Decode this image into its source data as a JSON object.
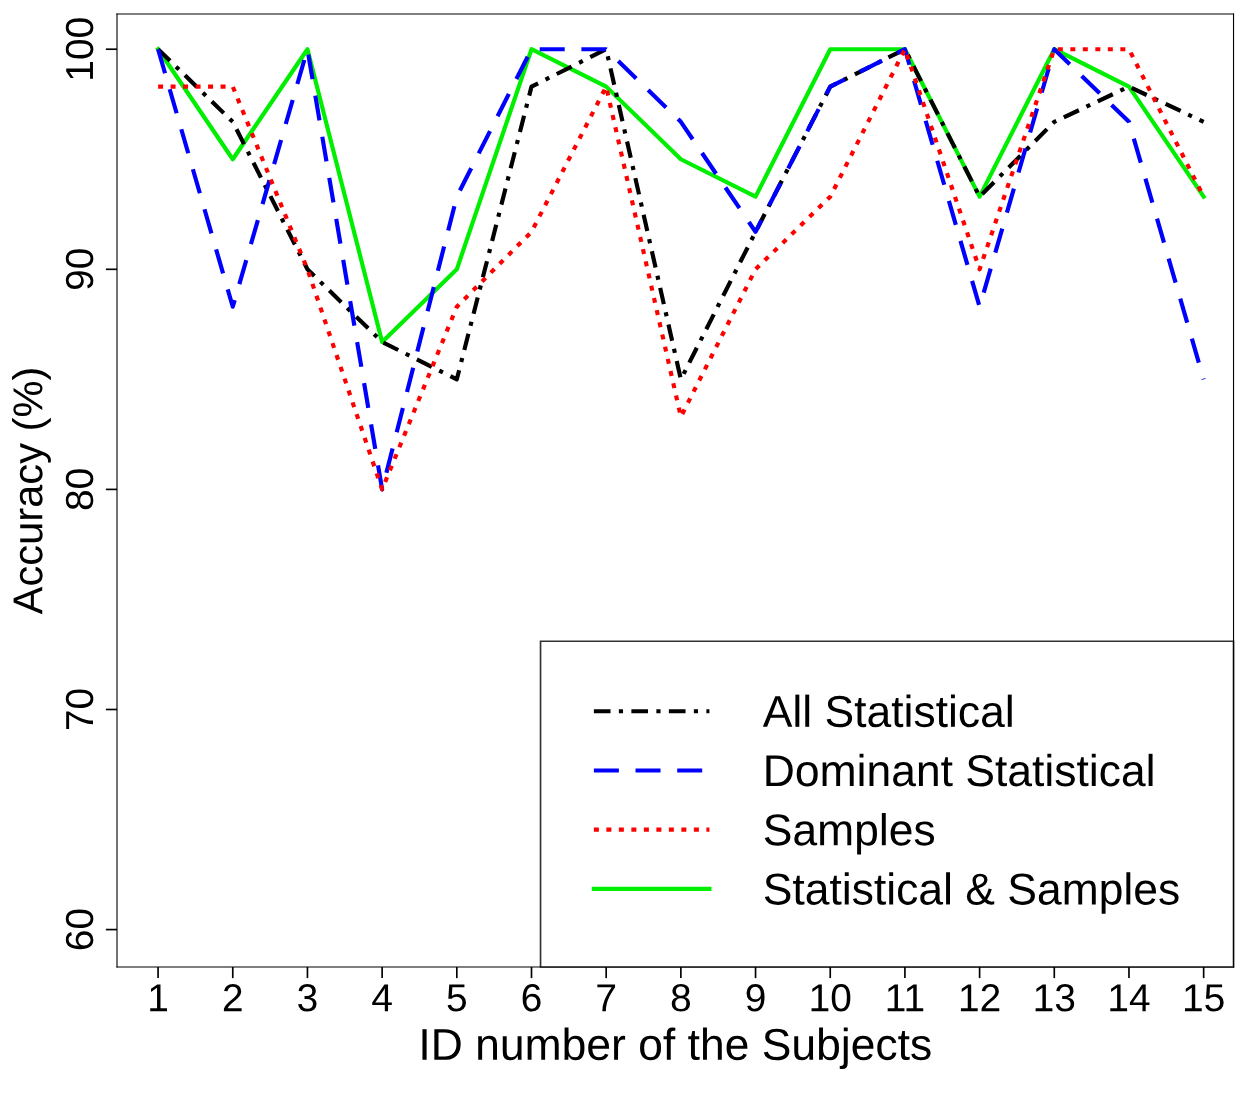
{
  "chart_data": {
    "type": "line",
    "xlabel": "ID number of the Subjects",
    "ylabel": "Accuracy (%)",
    "x": [
      1,
      2,
      3,
      4,
      5,
      6,
      7,
      8,
      9,
      10,
      11,
      12,
      13,
      14,
      15
    ],
    "xlim": [
      0.45,
      15.4
    ],
    "xticks": [
      1,
      2,
      3,
      4,
      5,
      6,
      7,
      8,
      9,
      10,
      11,
      12,
      13,
      14,
      15
    ],
    "ylim": [
      58.3,
      101.6
    ],
    "yticks": [
      60,
      70,
      80,
      90,
      100
    ],
    "grid": false,
    "legend": "bottom right",
    "marker": "none",
    "series": [
      {
        "name": "All Statistical",
        "color": "#000000",
        "line_style": "dashdot",
        "values": [
          100,
          96.7,
          90,
          86.7,
          85,
          98.3,
          100,
          85,
          91.7,
          98.3,
          100,
          93.3,
          96.7,
          98.3,
          96.7
        ]
      },
      {
        "name": "Dominant Statistical",
        "color": "#0000ff",
        "line_style": "dashed",
        "values": [
          100,
          88.3,
          100,
          80,
          93.3,
          100,
          100,
          96.7,
          91.7,
          98.3,
          100,
          88.3,
          100,
          96.7,
          85
        ]
      },
      {
        "name": "Samples",
        "color": "#ff0000",
        "line_style": "dotted",
        "values": [
          98.3,
          98.3,
          90,
          80,
          88.3,
          91.7,
          98.3,
          83.3,
          90,
          93.3,
          100,
          90,
          100,
          100,
          93.3
        ]
      },
      {
        "name": "Statistical & Samples",
        "color": "#00ee00",
        "line_style": "solid",
        "values": [
          100,
          95,
          100,
          86.7,
          90,
          100,
          98.3,
          95,
          93.3,
          100,
          100,
          93.3,
          100,
          98.3,
          93.3
        ]
      }
    ]
  }
}
